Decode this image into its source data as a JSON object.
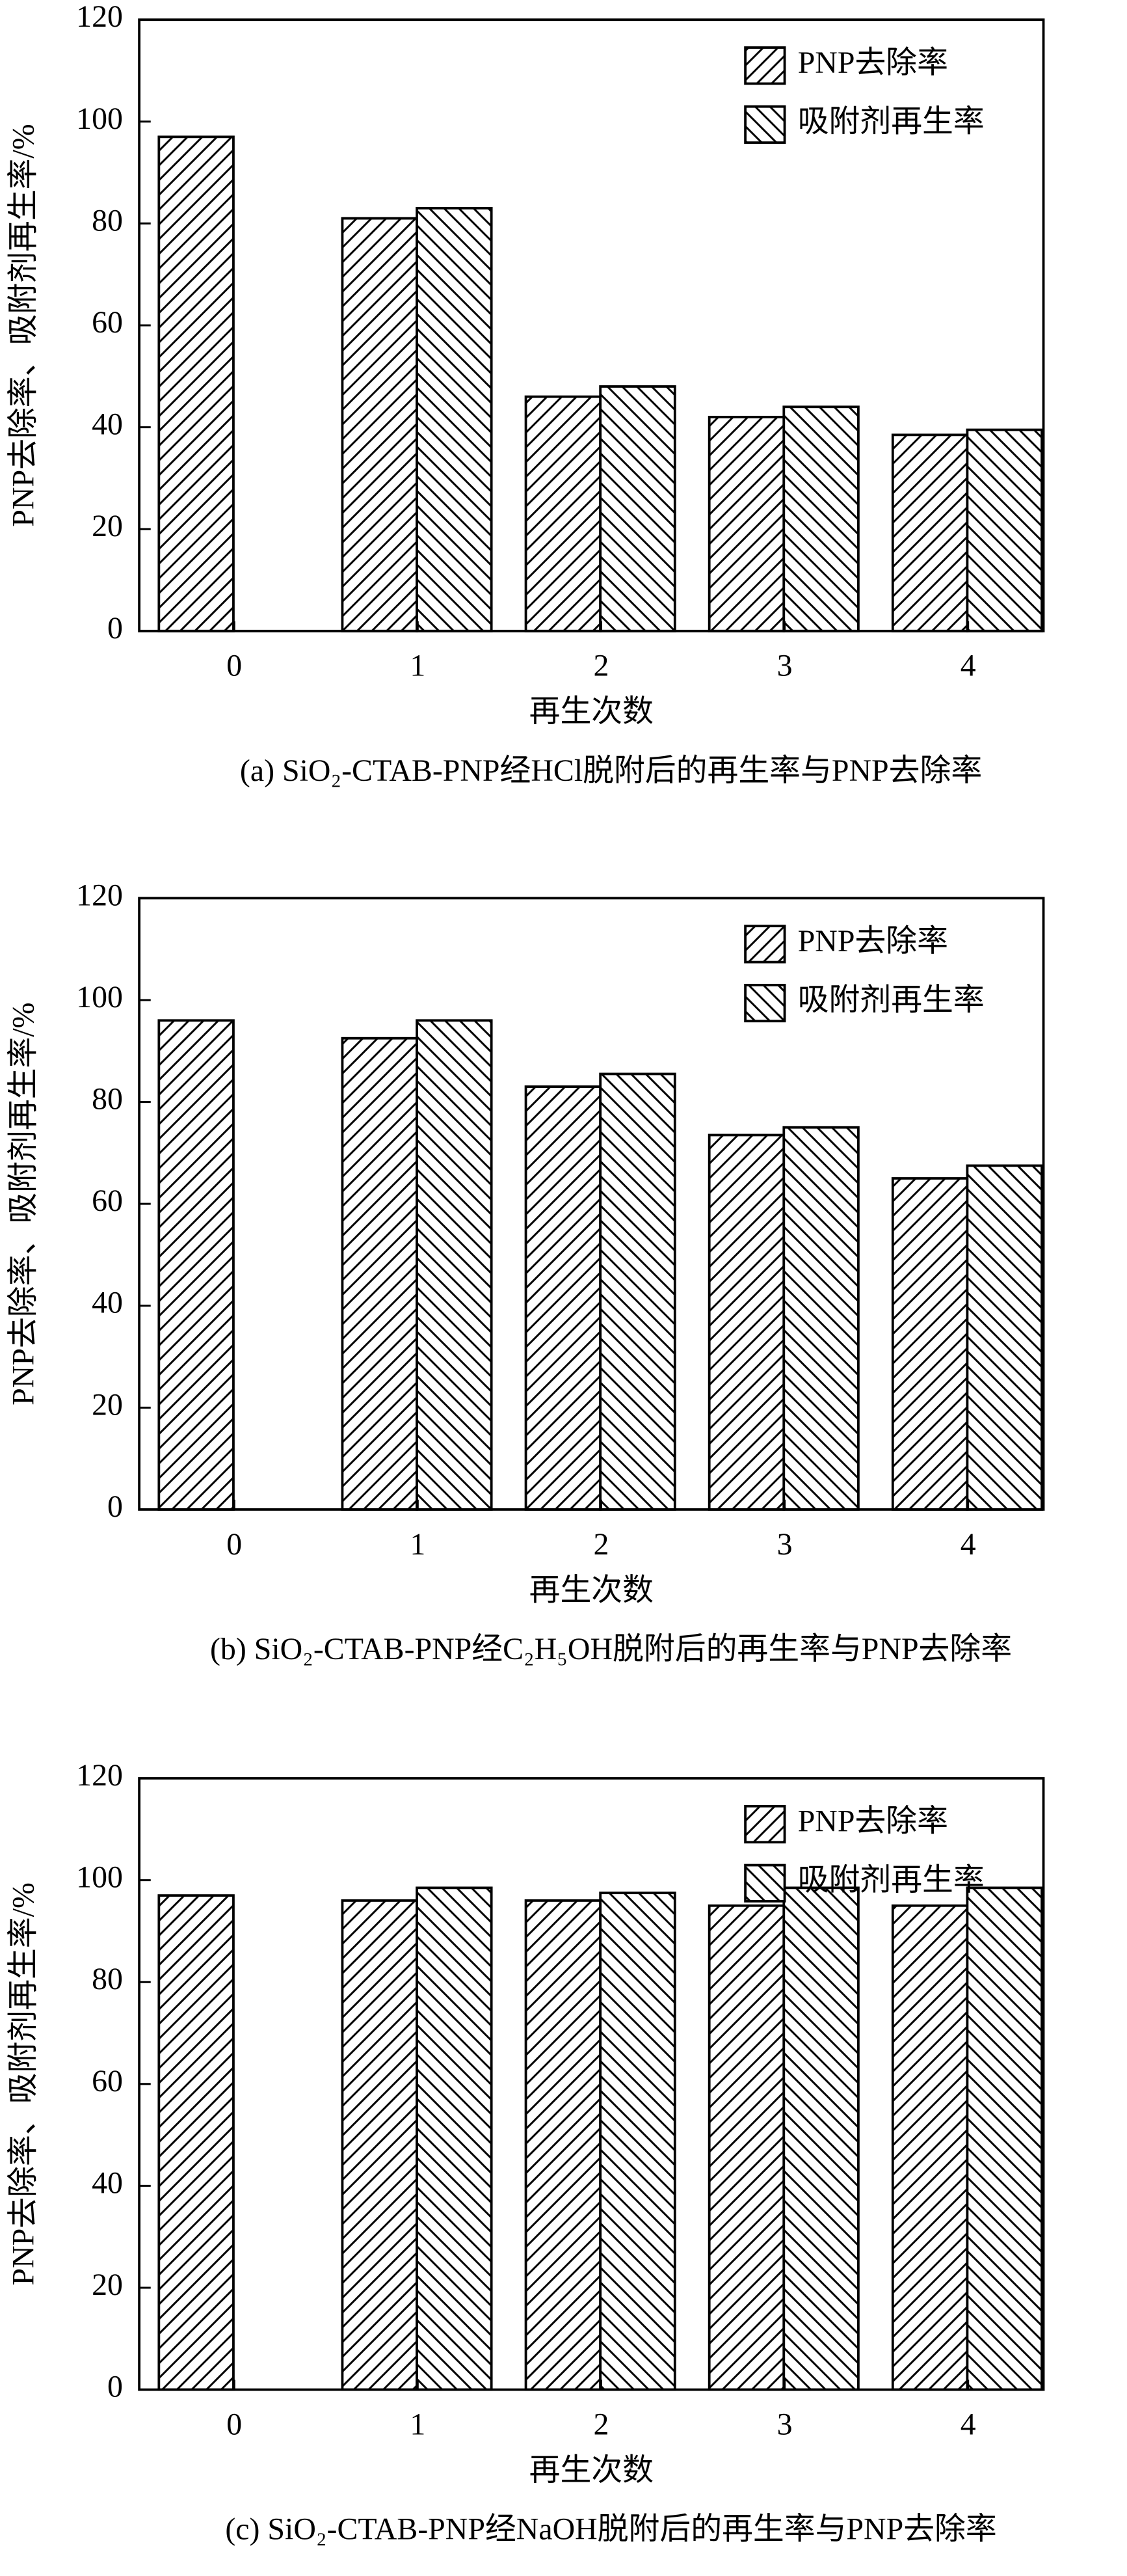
{
  "chart_data": [
    {
      "type": "bar",
      "y_label": "PNP去除率、吸附剂再生率/%",
      "x_label": "再生次数",
      "caption": "(a) SiO₂-CTAB-PNP经HCl脱附后的再生率与PNP去除率",
      "categories": [
        "0",
        "1",
        "2",
        "3",
        "4"
      ],
      "series": [
        {
          "name": "PNP去除率",
          "color": "#000000",
          "hatch": "/",
          "values": [
            97,
            81,
            46,
            42,
            38.5
          ]
        },
        {
          "name": "吸附剂再生率",
          "color": "#000000",
          "hatch": "\\",
          "values": [
            null,
            83,
            48,
            44,
            39.5
          ]
        }
      ],
      "ylim": [
        0,
        120
      ],
      "yticks": [
        0,
        20,
        40,
        60,
        80,
        100,
        120
      ],
      "legend": "upper right"
    },
    {
      "type": "bar",
      "y_label": "PNP去除率、吸附剂再生率/%",
      "x_label": "再生次数",
      "caption": "(b) SiO₂-CTAB-PNP经C₂H₅OH脱附后的再生率与PNP去除率",
      "categories": [
        "0",
        "1",
        "2",
        "3",
        "4"
      ],
      "series": [
        {
          "name": "PNP去除率",
          "color": "#000000",
          "hatch": "/",
          "values": [
            96,
            92.5,
            83,
            73.5,
            65
          ]
        },
        {
          "name": "吸附剂再生率",
          "color": "#000000",
          "hatch": "\\",
          "values": [
            null,
            96,
            85.5,
            75,
            67.5
          ]
        }
      ],
      "ylim": [
        0,
        120
      ],
      "yticks": [
        0,
        20,
        40,
        60,
        80,
        100,
        120
      ],
      "legend": "upper right"
    },
    {
      "type": "bar",
      "y_label": "PNP去除率、吸附剂再生率/%",
      "x_label": "再生次数",
      "caption": "(c) SiO₂-CTAB-PNP经NaOH脱附后的再生率与PNP去除率",
      "categories": [
        "0",
        "1",
        "2",
        "3",
        "4"
      ],
      "series": [
        {
          "name": "PNP去除率",
          "color": "#000000",
          "hatch": "/",
          "values": [
            97,
            96,
            96,
            95,
            95
          ]
        },
        {
          "name": "吸附剂再生率",
          "color": "#000000",
          "hatch": "\\",
          "values": [
            null,
            98.5,
            97.5,
            98.5,
            98.5
          ]
        }
      ],
      "ylim": [
        0,
        120
      ],
      "yticks": [
        0,
        20,
        40,
        60,
        80,
        100,
        120
      ],
      "legend": "upper right"
    }
  ]
}
